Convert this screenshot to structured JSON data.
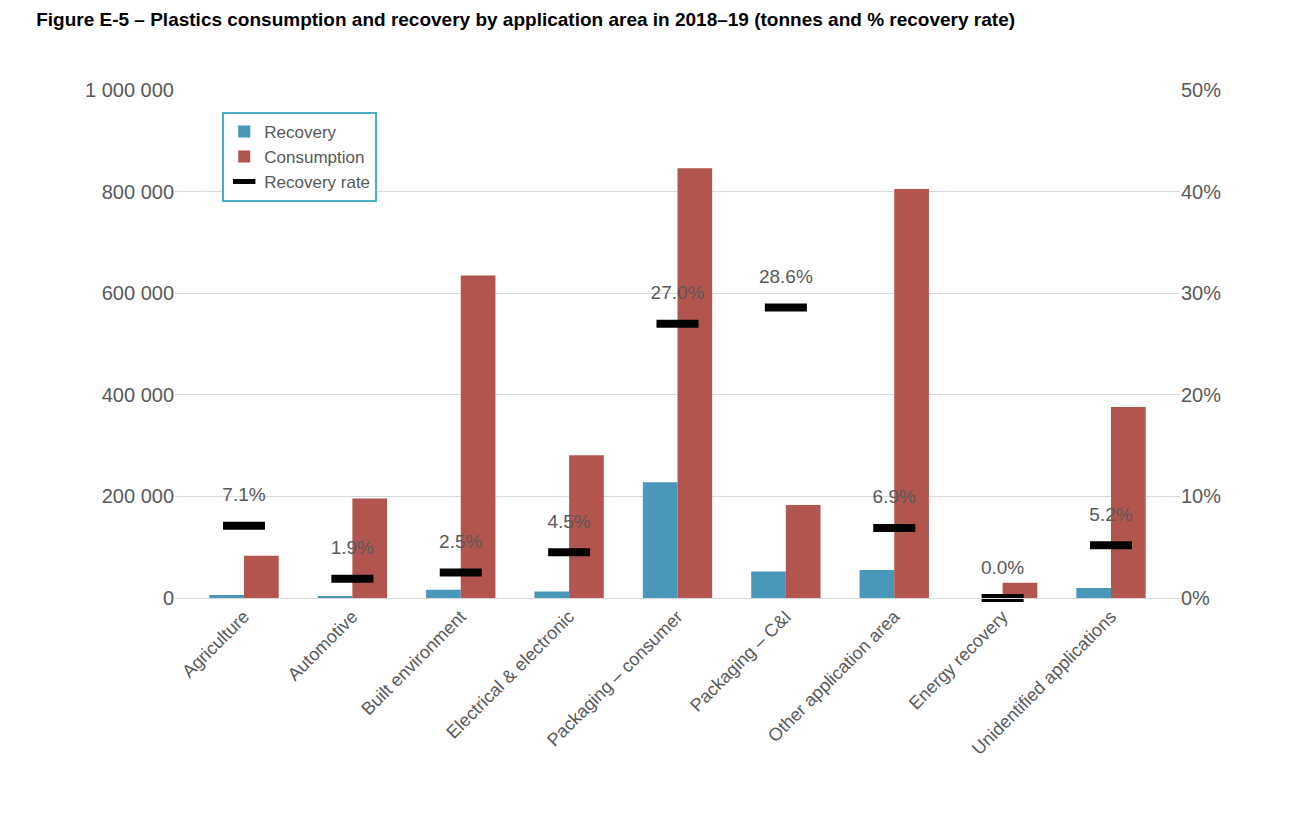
{
  "chart_data": {
    "type": "bar",
    "title": "Figure E-5 – Plastics consumption and recovery by application area in 2018–19 (tonnes and % recovery rate)",
    "categories": [
      "Agriculture",
      "Automotive",
      "Built environment",
      "Electrical & electronic",
      "Packaging – consumer",
      "Packaging – C&I",
      "Other application area",
      "Energy recovery",
      "Unidentified applications"
    ],
    "series": [
      {
        "name": "Recovery",
        "color": "#4a98b9",
        "values": [
          6000,
          3700,
          16000,
          12600,
          228000,
          52000,
          55000,
          0,
          19500
        ]
      },
      {
        "name": "Consumption",
        "color": "#b3554f",
        "values": [
          83000,
          196000,
          635000,
          281000,
          846000,
          183000,
          805000,
          30000,
          376000
        ]
      },
      {
        "name": "Recovery rate",
        "color": "#000000",
        "type": "scatter",
        "marker": "dash",
        "axis": "y2",
        "values": [
          7.1,
          1.9,
          2.5,
          4.5,
          27.0,
          28.6,
          6.9,
          0.0,
          5.2
        ],
        "value_labels": [
          "7.1%",
          "1.9%",
          "2.5%",
          "4.5%",
          "27.0%",
          "28.6%",
          "6.9%",
          "0.0%",
          "5.2%"
        ]
      }
    ],
    "ylim": [
      0,
      1000000
    ],
    "yticks": [
      0,
      {
        "value": 200000,
        "label": "200 000"
      },
      {
        "value": 400000,
        "label": "400 000"
      },
      {
        "value": 600000,
        "label": "600 000"
      },
      {
        "value": 800000,
        "label": "800 000"
      },
      {
        "value": 1000000,
        "label": "1 000 000"
      }
    ],
    "y2lim": [
      0,
      50
    ],
    "y2ticks": [
      {
        "value": 0,
        "label": "0%"
      },
      {
        "value": 10,
        "label": "10%"
      },
      {
        "value": 20,
        "label": "20%"
      },
      {
        "value": 30,
        "label": "30%"
      },
      {
        "value": 40,
        "label": "40%"
      },
      {
        "value": 50,
        "label": "50%"
      }
    ],
    "grid": true,
    "legend": "top left",
    "data_labels": true
  }
}
